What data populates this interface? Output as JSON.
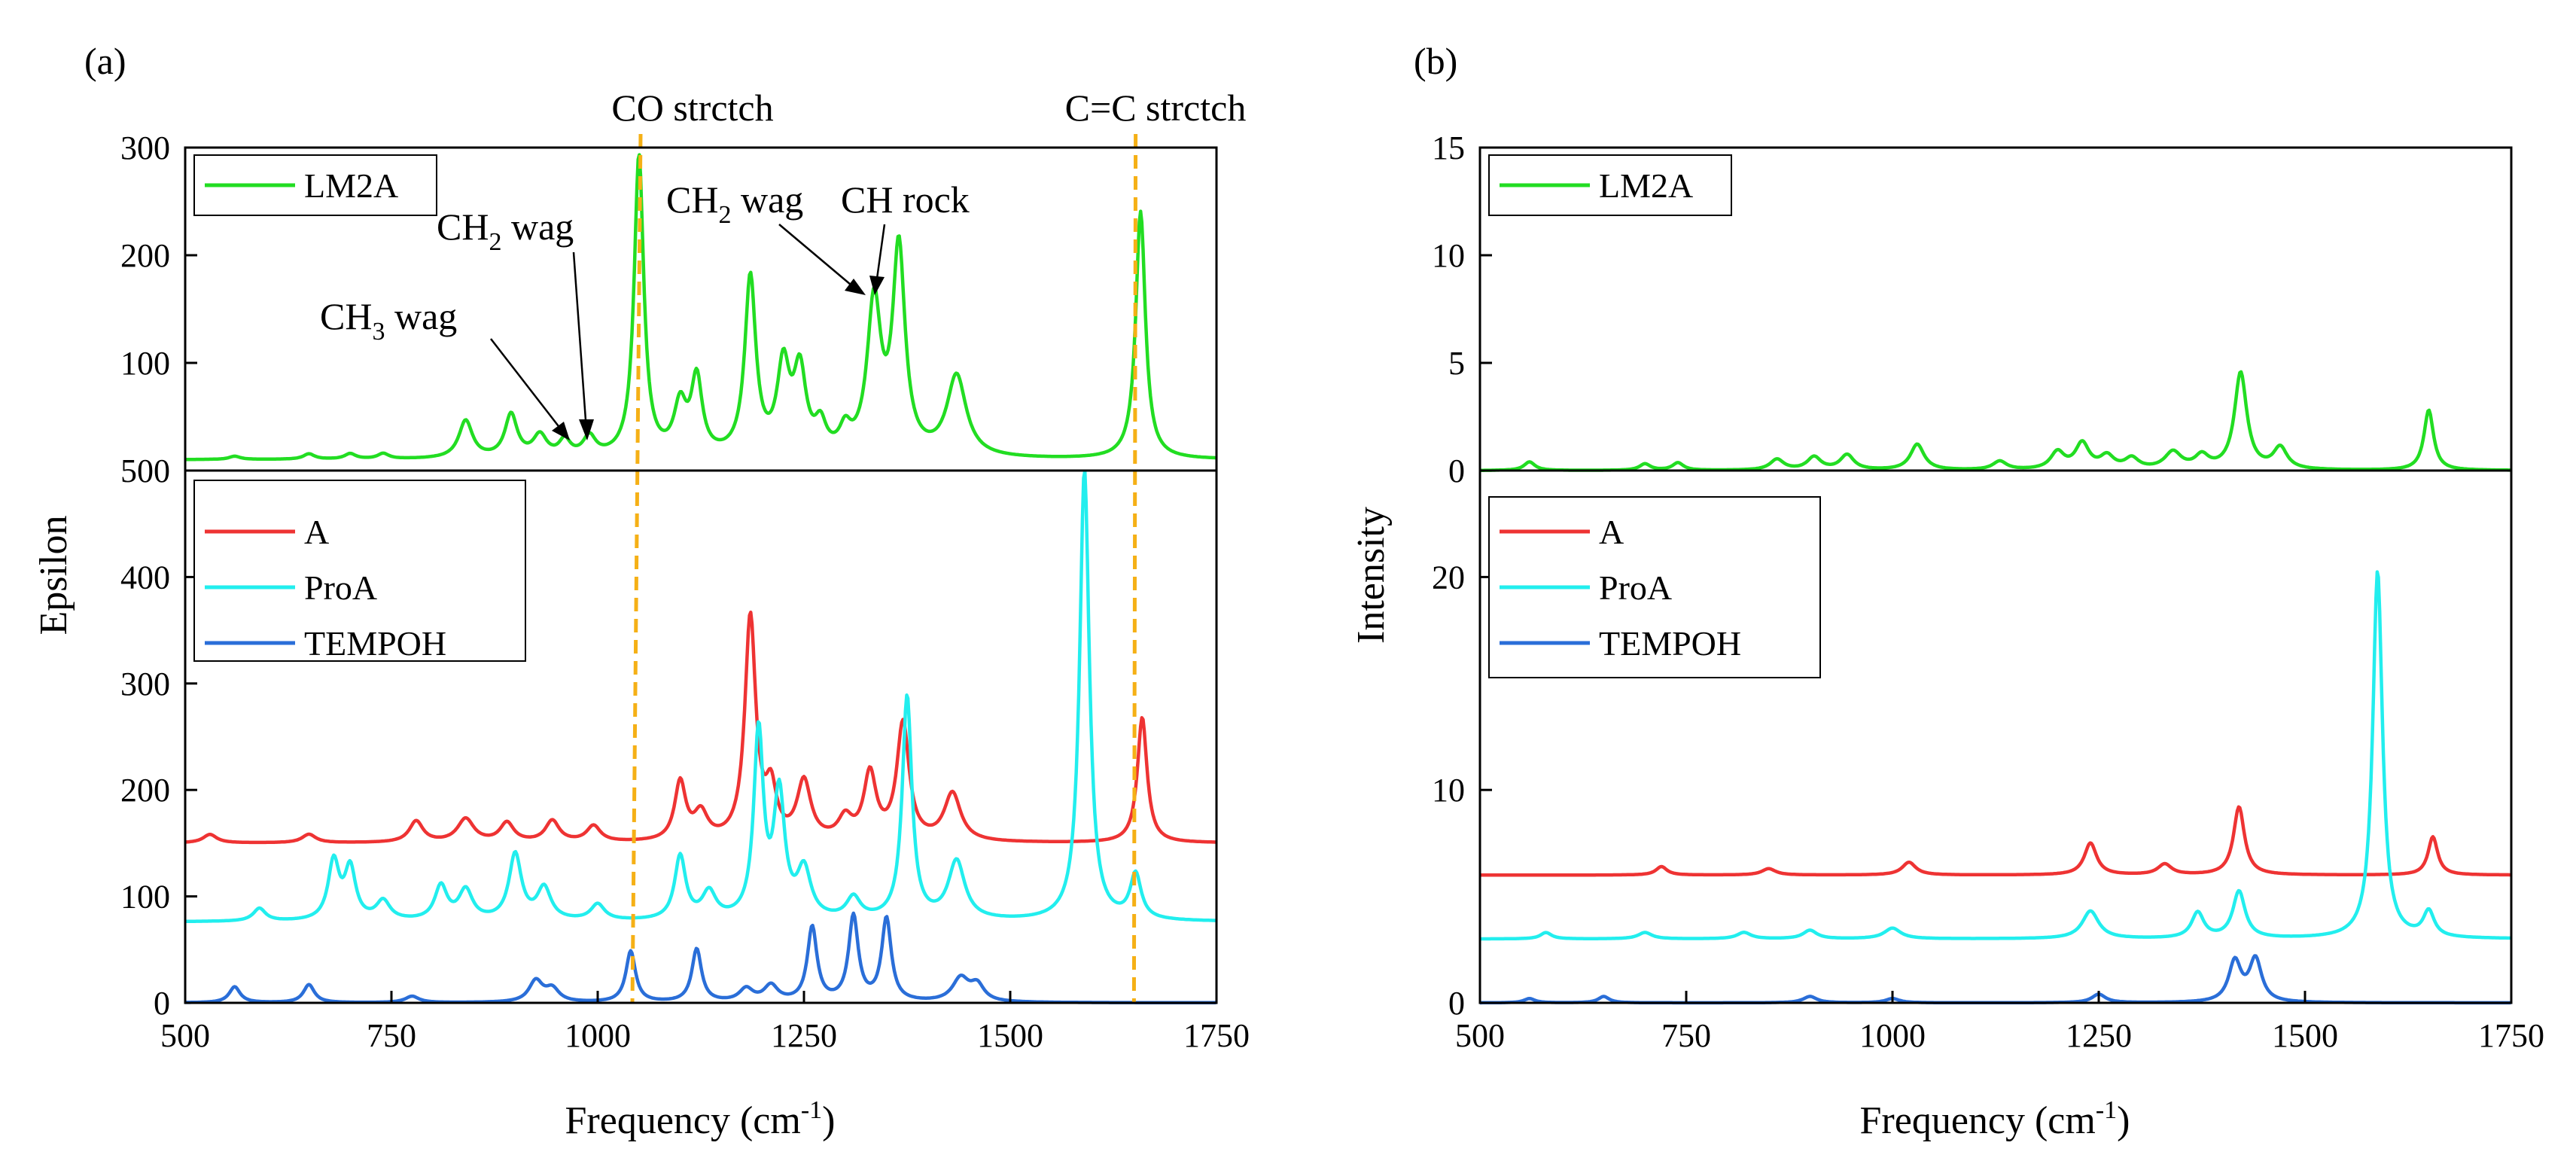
{
  "figure": {
    "panel_a_label": "(a)",
    "panel_b_label": "(b)"
  },
  "colors": {
    "LM2A": "#22dd22",
    "A": "#ee3333",
    "ProA": "#22eeee",
    "TEMPOH": "#2a6ed8",
    "marker": "#f5b016"
  },
  "chart_data": [
    {
      "id": "a",
      "type": "line",
      "xlabel": "Frequency (cm",
      "xlabel_sup": "-1",
      "xlabel_end": ")",
      "ylabel": "Epsilon",
      "xlim": [
        500,
        1750
      ],
      "x_ticks": [
        "500",
        "750",
        "1000",
        "1250",
        "1500",
        "1750"
      ],
      "top": {
        "ylim": [
          0,
          300
        ],
        "y_ticks": [
          "300",
          "200",
          "100"
        ],
        "legend": [
          "LM2A"
        ],
        "series": [
          {
            "name": "LM2A",
            "color": "LM2A",
            "baseline": 10,
            "peaks": [
              [
                560,
                3,
                8
              ],
              [
                650,
                5,
                8
              ],
              [
                700,
                5,
                8
              ],
              [
                740,
                5,
                8
              ],
              [
                840,
                35,
                10
              ],
              [
                895,
                40,
                9
              ],
              [
                930,
                20,
                10
              ],
              [
                960,
                15,
                8
              ],
              [
                990,
                18,
                9
              ],
              [
                1050,
                280,
                7
              ],
              [
                1100,
                45,
                9
              ],
              [
                1120,
                70,
                8
              ],
              [
                1185,
                165,
                8
              ],
              [
                1225,
                80,
                9
              ],
              [
                1245,
                75,
                9
              ],
              [
                1270,
                25,
                8
              ],
              [
                1300,
                20,
                8
              ],
              [
                1335,
                140,
                10
              ],
              [
                1365,
                190,
                9
              ],
              [
                1435,
                75,
                14
              ],
              [
                1658,
                230,
                7
              ]
            ]
          }
        ]
      },
      "bottom": {
        "ylim": [
          0,
          500
        ],
        "y_ticks": [
          "500",
          "400",
          "300",
          "200",
          "100",
          "0"
        ],
        "legend": [
          "A",
          "ProA",
          "TEMPOH"
        ],
        "series": [
          {
            "name": "A",
            "color": "A",
            "baseline": 150,
            "peaks": [
              [
                530,
                8,
                10
              ],
              [
                650,
                8,
                10
              ],
              [
                780,
                20,
                10
              ],
              [
                840,
                22,
                12
              ],
              [
                890,
                18,
                10
              ],
              [
                945,
                20,
                10
              ],
              [
                995,
                15,
                10
              ],
              [
                1100,
                55,
                8
              ],
              [
                1125,
                25,
                10
              ],
              [
                1185,
                210,
                8
              ],
              [
                1210,
                45,
                8
              ],
              [
                1250,
                55,
                10
              ],
              [
                1300,
                20,
                10
              ],
              [
                1330,
                62,
                9
              ],
              [
                1370,
                110,
                9
              ],
              [
                1430,
                45,
                12
              ],
              [
                1660,
                118,
                7
              ]
            ]
          },
          {
            "name": "ProA",
            "color": "ProA",
            "baseline": 76,
            "peaks": [
              [
                590,
                12,
                9
              ],
              [
                680,
                55,
                8
              ],
              [
                700,
                48,
                8
              ],
              [
                740,
                18,
                10
              ],
              [
                810,
                32,
                9
              ],
              [
                840,
                28,
                10
              ],
              [
                900,
                62,
                9
              ],
              [
                935,
                30,
                10
              ],
              [
                1000,
                15,
                10
              ],
              [
                1100,
                60,
                8
              ],
              [
                1135,
                25,
                10
              ],
              [
                1195,
                175,
                7
              ],
              [
                1220,
                115,
                8
              ],
              [
                1250,
                45,
                10
              ],
              [
                1310,
                20,
                10
              ],
              [
                1375,
                210,
                7
              ],
              [
                1435,
                55,
                12
              ],
              [
                1590,
                424,
                7
              ],
              [
                1652,
                42,
                8
              ]
            ]
          },
          {
            "name": "TEMPOH",
            "color": "TEMPOH",
            "baseline": 0,
            "peaks": [
              [
                560,
                15,
                8
              ],
              [
                650,
                17,
                8
              ],
              [
                775,
                6,
                10
              ],
              [
                925,
                20,
                10
              ],
              [
                945,
                12,
                10
              ],
              [
                1040,
                48,
                7
              ],
              [
                1120,
                50,
                7
              ],
              [
                1180,
                12,
                10
              ],
              [
                1210,
                15,
                10
              ],
              [
                1260,
                70,
                7
              ],
              [
                1310,
                80,
                7
              ],
              [
                1350,
                78,
                7
              ],
              [
                1440,
                22,
                12
              ],
              [
                1460,
                15,
                10
              ]
            ]
          }
        ]
      },
      "annotations": [
        {
          "text": "CO strctch",
          "x": 1050
        },
        {
          "text": "C=C strctch",
          "x": 1652
        },
        {
          "label": "CH",
          "sub": "3",
          "rest": " wag",
          "target_x": 970,
          "target_y": 30
        },
        {
          "label": "CH",
          "sub": "2",
          "rest": " wag",
          "target_x": 1000,
          "target_y": 30
        },
        {
          "label": "CH",
          "sub": "2",
          "rest": " wag",
          "target_x": 1327,
          "target_y": 165
        },
        {
          "label": "CH rock",
          "target_x": 1338,
          "target_y": 165
        }
      ],
      "marker_lines_x": [
        1042,
        1650
      ]
    },
    {
      "id": "b",
      "type": "line",
      "xlabel": "Frequency (cm",
      "xlabel_sup": "-1",
      "xlabel_end": ")",
      "ylabel": "Intensity",
      "xlim": [
        500,
        1750
      ],
      "x_ticks": [
        "500",
        "1000",
        "1500"
      ],
      "x_ticks_minor": [
        "750",
        "1250",
        "1750"
      ],
      "top": {
        "ylim": [
          0,
          15
        ],
        "y_ticks": [
          "15",
          "10",
          "5",
          "0"
        ],
        "legend": [
          "LM2A"
        ],
        "series": [
          {
            "name": "LM2A",
            "color": "LM2A",
            "baseline": 0,
            "peaks": [
              [
                560,
                0.4,
                8
              ],
              [
                700,
                0.3,
                8
              ],
              [
                740,
                0.35,
                8
              ],
              [
                860,
                0.5,
                10
              ],
              [
                905,
                0.6,
                10
              ],
              [
                945,
                0.7,
                10
              ],
              [
                1030,
                1.2,
                10
              ],
              [
                1130,
                0.4,
                10
              ],
              [
                1200,
                0.8,
                10
              ],
              [
                1230,
                1.2,
                10
              ],
              [
                1260,
                0.6,
                10
              ],
              [
                1290,
                0.5,
                10
              ],
              [
                1340,
                0.8,
                12
              ],
              [
                1375,
                0.6,
                10
              ],
              [
                1422,
                4.5,
                9
              ],
              [
                1470,
                1.0,
                10
              ],
              [
                1650,
                2.8,
                7
              ]
            ]
          }
        ]
      },
      "bottom": {
        "ylim": [
          0,
          25
        ],
        "y_ticks": [
          "20",
          "10",
          "0"
        ],
        "legend": [
          "A",
          "ProA",
          "TEMPOH"
        ],
        "series": [
          {
            "name": "A",
            "color": "A",
            "baseline": 6,
            "peaks": [
              [
                720,
                0.4,
                8
              ],
              [
                850,
                0.3,
                10
              ],
              [
                1020,
                0.6,
                10
              ],
              [
                1240,
                1.5,
                9
              ],
              [
                1330,
                0.5,
                10
              ],
              [
                1420,
                3.2,
                8
              ],
              [
                1655,
                1.8,
                7
              ]
            ]
          },
          {
            "name": "ProA",
            "color": "ProA",
            "baseline": 3,
            "peaks": [
              [
                580,
                0.3,
                8
              ],
              [
                700,
                0.3,
                10
              ],
              [
                820,
                0.3,
                10
              ],
              [
                900,
                0.4,
                10
              ],
              [
                1000,
                0.5,
                12
              ],
              [
                1240,
                1.3,
                12
              ],
              [
                1370,
                1.2,
                9
              ],
              [
                1420,
                2.2,
                9
              ],
              [
                1588,
                17.3,
                7
              ],
              [
                1650,
                1.2,
                8
              ]
            ]
          },
          {
            "name": "TEMPOH",
            "color": "TEMPOH",
            "baseline": 0,
            "peaks": [
              [
                560,
                0.2,
                8
              ],
              [
                650,
                0.3,
                8
              ],
              [
                900,
                0.3,
                10
              ],
              [
                1000,
                0.2,
                10
              ],
              [
                1250,
                0.4,
                10
              ],
              [
                1415,
                1.9,
                9
              ],
              [
                1440,
                2.0,
                9
              ]
            ]
          }
        ]
      }
    }
  ]
}
